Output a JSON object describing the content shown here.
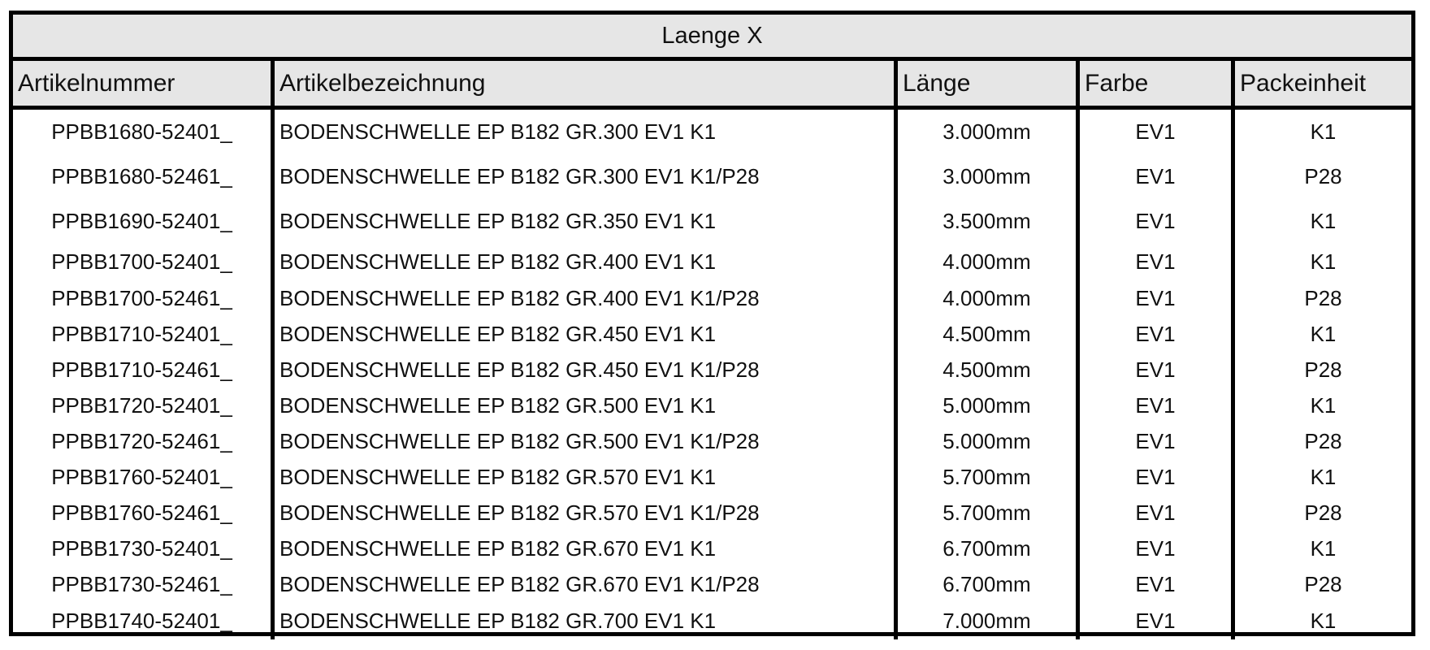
{
  "title": "Laenge X",
  "columns": [
    "Artikelnummer",
    "Artikelbezeichnung",
    "Länge",
    "Farbe",
    "Packeinheit"
  ],
  "rows": [
    [
      "PPBB1680-52401_",
      "BODENSCHWELLE EP B182 GR.300 EV1 K1",
      "3.000mm",
      "EV1",
      "K1"
    ],
    [
      "PPBB1680-52461_",
      "BODENSCHWELLE EP B182 GR.300 EV1 K1/P28",
      "3.000mm",
      "EV1",
      "P28"
    ],
    [
      "PPBB1690-52401_",
      "BODENSCHWELLE EP B182 GR.350 EV1 K1",
      "3.500mm",
      "EV1",
      "K1"
    ],
    [
      "PPBB1700-52401_",
      "BODENSCHWELLE EP B182 GR.400 EV1 K1",
      "4.000mm",
      "EV1",
      "K1"
    ],
    [
      "PPBB1700-52461_",
      "BODENSCHWELLE EP B182 GR.400 EV1 K1/P28",
      "4.000mm",
      "EV1",
      "P28"
    ],
    [
      "PPBB1710-52401_",
      "BODENSCHWELLE EP B182 GR.450 EV1 K1",
      "4.500mm",
      "EV1",
      "K1"
    ],
    [
      "PPBB1710-52461_",
      "BODENSCHWELLE EP B182 GR.450 EV1 K1/P28",
      "4.500mm",
      "EV1",
      "P28"
    ],
    [
      "PPBB1720-52401_",
      "BODENSCHWELLE EP B182 GR.500 EV1 K1",
      "5.000mm",
      "EV1",
      "K1"
    ],
    [
      "PPBB1720-52461_",
      "BODENSCHWELLE EP B182 GR.500 EV1 K1/P28",
      "5.000mm",
      "EV1",
      "P28"
    ],
    [
      "PPBB1760-52401_",
      "BODENSCHWELLE EP B182 GR.570 EV1 K1",
      "5.700mm",
      "EV1",
      "K1"
    ],
    [
      "PPBB1760-52461_",
      "BODENSCHWELLE EP B182 GR.570 EV1 K1/P28",
      "5.700mm",
      "EV1",
      "P28"
    ],
    [
      "PPBB1730-52401_",
      "BODENSCHWELLE EP B182 GR.670 EV1 K1",
      "6.700mm",
      "EV1",
      "K1"
    ],
    [
      "PPBB1730-52461_",
      "BODENSCHWELLE EP B182 GR.670 EV1 K1/P28",
      "6.700mm",
      "EV1",
      "P28"
    ],
    [
      "PPBB1740-52401_",
      "BODENSCHWELLE EP B182 GR.700 EV1 K1",
      "7.000mm",
      "EV1",
      "K1"
    ]
  ]
}
